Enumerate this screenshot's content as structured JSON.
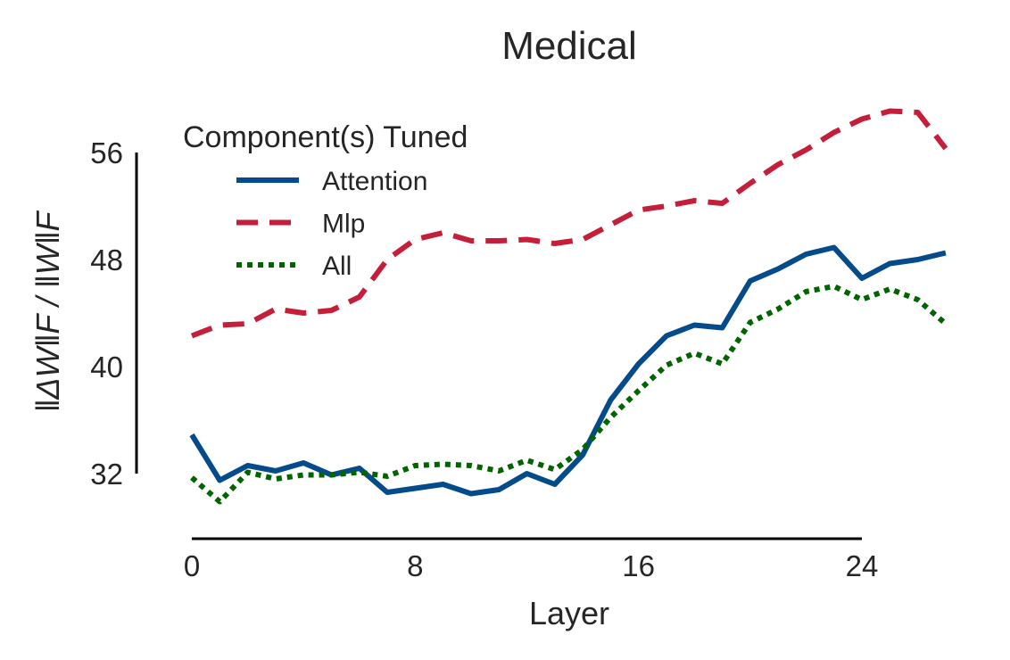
{
  "chart_data": {
    "type": "line",
    "title": "Medical",
    "xlabel": "Layer",
    "ylabel": "‖ΔW‖F / ‖W‖F",
    "xlim": [
      0,
      24
    ],
    "ylim": [
      32,
      56
    ],
    "xticks": [
      0,
      8,
      16,
      24
    ],
    "yticks": [
      32,
      40,
      48,
      56
    ],
    "grid": false,
    "legend": {
      "title": "Component(s) Tuned",
      "placement": "top-left"
    },
    "x": [
      0,
      1,
      2,
      3,
      4,
      5,
      6,
      7,
      8,
      9,
      10,
      11,
      12,
      13,
      14,
      15,
      16,
      17,
      18,
      19,
      20,
      21,
      22,
      23,
      24,
      25,
      26,
      27
    ],
    "series": [
      {
        "name": "Attention",
        "color": "#034b8a",
        "dash": "solid",
        "values": [
          34.9,
          31.5,
          32.6,
          32.2,
          32.8,
          31.9,
          32.4,
          30.6,
          30.9,
          31.2,
          30.5,
          30.8,
          32.0,
          31.2,
          33.4,
          37.5,
          40.2,
          42.3,
          43.1,
          42.9,
          46.4,
          47.3,
          48.4,
          48.9,
          46.6,
          47.7,
          48.0,
          48.5
        ]
      },
      {
        "name": "Mlp",
        "color": "#c41e3a",
        "dash": "dashed",
        "values": [
          42.3,
          43.1,
          43.2,
          44.3,
          44.0,
          44.2,
          45.2,
          48.0,
          49.5,
          50.0,
          49.4,
          49.4,
          49.5,
          49.2,
          49.5,
          50.6,
          51.7,
          52.0,
          52.4,
          52.2,
          53.7,
          55.1,
          56.2,
          57.5,
          58.5,
          59.1,
          59.0,
          56.3
        ]
      },
      {
        "name": "All",
        "color": "#006400",
        "dash": "dotted",
        "values": [
          31.7,
          29.9,
          32.1,
          31.6,
          31.9,
          31.9,
          32.1,
          31.8,
          32.6,
          32.7,
          32.6,
          32.2,
          33.0,
          32.3,
          33.8,
          36.2,
          38.2,
          40.1,
          41.0,
          40.2,
          43.3,
          44.3,
          45.6,
          46.0,
          45.0,
          45.8,
          45.0,
          43.2
        ]
      }
    ]
  }
}
